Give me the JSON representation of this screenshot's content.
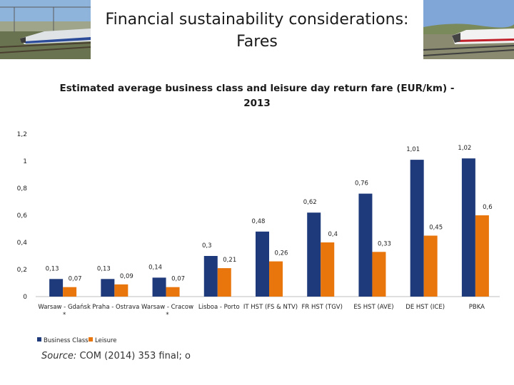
{
  "slide": {
    "title_line1": "Financial sustainability considerations:",
    "title_line2": "Fares"
  },
  "source": {
    "label": "Source:",
    "text": "COM (2014) 353 final; o"
  },
  "colors": {
    "business": "#1f3a7a",
    "leisure": "#e8760c",
    "axis": "#bfbfbf"
  },
  "chart_data": {
    "type": "bar",
    "title_line1": "Estimated average business class and leisure day return fare (EUR/km) -",
    "title_line2": "2013",
    "xlabel": "",
    "ylabel": "",
    "ylim": [
      0,
      1.2
    ],
    "y_ticks": [
      {
        "value": 0,
        "label": "0"
      },
      {
        "value": 0.2,
        "label": "0,2"
      },
      {
        "value": 0.4,
        "label": "0,4"
      },
      {
        "value": 0.6,
        "label": "0,6"
      },
      {
        "value": 0.8,
        "label": "0,8"
      },
      {
        "value": 1,
        "label": "1"
      },
      {
        "value": 1.2,
        "label": "1,2"
      }
    ],
    "categories": [
      {
        "line1": "Warsaw - Gdańsk",
        "line2": "*"
      },
      {
        "line1": "Praha - Ostrava",
        "line2": ""
      },
      {
        "line1": "Warsaw - Cracow",
        "line2": "*"
      },
      {
        "line1": "Lisboa - Porto",
        "line2": ""
      },
      {
        "line1": "IT HST (FS & NTV)",
        "line2": ""
      },
      {
        "line1": "FR HST (TGV)",
        "line2": ""
      },
      {
        "line1": "ES HST (AVE)",
        "line2": ""
      },
      {
        "line1": "DE HST (ICE)",
        "line2": ""
      },
      {
        "line1": "PBKA",
        "line2": ""
      }
    ],
    "series": [
      {
        "name": "Business Class",
        "values": [
          0.13,
          0.13,
          0.14,
          0.3,
          0.48,
          0.62,
          0.76,
          1.01,
          1.02
        ],
        "labels": [
          "0,13",
          "0,13",
          "0,14",
          "0,3",
          "0,48",
          "0,62",
          "0,76",
          "1,01",
          "1,02"
        ]
      },
      {
        "name": "Leisure",
        "values": [
          0.07,
          0.09,
          0.07,
          0.21,
          0.26,
          0.4,
          0.33,
          0.45,
          0.6
        ],
        "labels": [
          "0,07",
          "0,09",
          "0,07",
          "0,21",
          "0,26",
          "0,4",
          "0,33",
          "0,45",
          "0,6"
        ]
      }
    ],
    "legend_position": "bottom-left",
    "grid": false
  }
}
